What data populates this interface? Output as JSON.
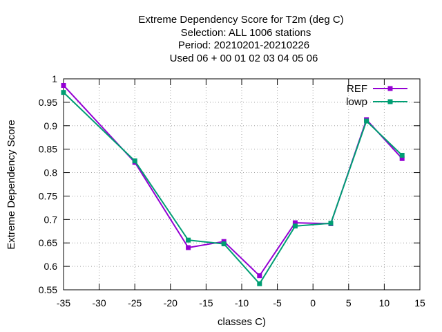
{
  "chart_data": {
    "type": "line",
    "title_lines": [
      "Extreme Dependency Score  for T2m (deg C)",
      "Selection: ALL   1006 stations",
      "Period: 20210201-20210226",
      "Used  06  + 00 01 02 03 04 05 06"
    ],
    "xlabel": "classes C)",
    "ylabel": "Extreme Dependency Score",
    "xlim": [
      -35,
      15
    ],
    "ylim": [
      0.55,
      1.0
    ],
    "xticks": [
      -35,
      -30,
      -25,
      -20,
      -15,
      -10,
      -5,
      0,
      5,
      10,
      15
    ],
    "xtick_labels": [
      "-35",
      "-30",
      "-25",
      "-20",
      "-15",
      "-10",
      "-5",
      "0",
      "5",
      "10",
      "15"
    ],
    "yticks": [
      0.55,
      0.6,
      0.65,
      0.7,
      0.75,
      0.8,
      0.85,
      0.9,
      0.95,
      1.0
    ],
    "ytick_labels": [
      "0.55",
      "0.6",
      "0.65",
      "0.7",
      "0.75",
      "0.8",
      "0.85",
      "0.9",
      "0.95",
      "1"
    ],
    "grid": true,
    "legend_position": "top-right",
    "x": [
      -35,
      -25,
      -17.5,
      -12.5,
      -7.5,
      -2.5,
      2.5,
      7.5,
      12.5
    ],
    "series": [
      {
        "name": "REF",
        "color": "#9400d3",
        "values": [
          0.986,
          0.822,
          0.64,
          0.653,
          0.58,
          0.693,
          0.691,
          0.913,
          0.83
        ]
      },
      {
        "name": "lowp",
        "color": "#009e73",
        "values": [
          0.971,
          0.825,
          0.656,
          0.648,
          0.563,
          0.686,
          0.692,
          0.91,
          0.837
        ]
      }
    ]
  }
}
